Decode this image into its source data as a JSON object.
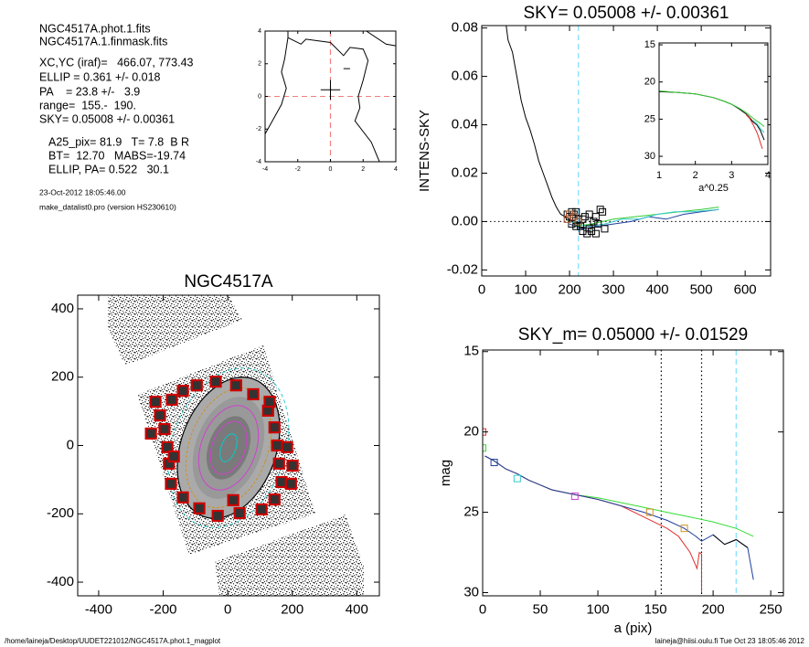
{
  "info": {
    "lines": [
      "NGC4517A.phot.1.fits",
      "NGC4517A.1.finmask.fits",
      "XC,YC (iraf)=   466.07, 773.43",
      "ELLIP = 0.361 +/- 0.018",
      "PA    = 23.8 +/-   3.9",
      "range=  155.-  190.",
      "SKY= 0.05008 +/- 0.00361",
      "A25_pix= 81.9   T= 7.8  B R",
      "BT=  12.70   MABS=-19.74",
      "ELLIP, PA= 0.522   30.1"
    ],
    "small": [
      "23-Oct-2012 18:05:46.00",
      "make_datalist0.pro (version HS230610)"
    ]
  },
  "footer": {
    "left": "/home/laineja/Desktop/UUDET221012/NGC4517A.phot.1_magplot",
    "right": "laineja@hiisi.oulu.fi  Tue Oct 23 18:05:46 2012"
  },
  "chart_data": [
    {
      "type": "contour",
      "xlim": [
        -4,
        4
      ],
      "ylim": [
        -4,
        4
      ],
      "xticks": [
        -4,
        -2,
        0,
        2,
        4
      ],
      "yticks": [
        -4,
        -2,
        0,
        2,
        4
      ],
      "vlines": [
        {
          "x": 0,
          "color": "#f08080",
          "dash": "dashed"
        }
      ],
      "hlines": [
        {
          "y": 0,
          "color": "#f08080",
          "dash": "dashed"
        }
      ],
      "series": [
        {
          "color": "#000000",
          "x": [
            -2.6,
            -2.6,
            -1.8,
            -1.5,
            0,
            0.8,
            1.2,
            2,
            2.3,
            2,
            1.7,
            1.8,
            1.5,
            2.5,
            3,
            null,
            -4,
            -3,
            -2.7,
            -3,
            -2.8,
            -2.6,
            null,
            2.2,
            3.4,
            4,
            null,
            -0.6,
            0.6,
            null,
            0,
            0,
            null,
            0.8,
            1.2
          ],
          "values": [
            4,
            3.6,
            3.2,
            3.5,
            3.3,
            2.5,
            3.0,
            2.9,
            2.2,
            1.0,
            0,
            -0.7,
            -1.5,
            -2.8,
            -4,
            null,
            -2.3,
            -0.5,
            0.5,
            1.5,
            2.3,
            3.6,
            null,
            4,
            3.2,
            3.1,
            null,
            0.4,
            0.4,
            null,
            -0.2,
            1.0,
            null,
            1.7,
            1.7
          ]
        }
      ]
    },
    {
      "type": "line",
      "title": "SKY= 0.05008 +/- 0.00361",
      "ylabel": "INTENS-SKY",
      "xlim": [
        0,
        658
      ],
      "ylim": [
        -0.0225,
        0.081
      ],
      "xticks": [
        0,
        100,
        200,
        300,
        400,
        500,
        600
      ],
      "yticks": [
        -0.02,
        {
          "value": 0,
          "label": "0.00"
        },
        0.02,
        0.04,
        0.06,
        0.08
      ],
      "vlines": [
        {
          "x": 220,
          "color": "#7fdfff",
          "dash": "dashed"
        }
      ],
      "hlines": [
        {
          "y": 0,
          "color": "#000000",
          "dash": "dotted"
        }
      ],
      "series": [
        {
          "color": "#000000",
          "x": [
            55,
            60,
            70,
            80,
            90,
            100,
            110,
            120,
            130,
            140,
            150,
            160,
            170,
            180,
            190,
            200,
            210,
            220,
            250
          ],
          "values": [
            0.082,
            0.075,
            0.07,
            0.06,
            0.05,
            0.043,
            0.038,
            0.032,
            0.025,
            0.02,
            0.015,
            0.01,
            0.006,
            0.003,
            0.002,
            0.001,
            -0.001,
            -0.002,
            -0.003
          ]
        },
        {
          "color": "#33cc33",
          "x": [
            210,
            250,
            300,
            350,
            400,
            450,
            500,
            540
          ],
          "values": [
            -0.002,
            -0.001,
            0.001,
            0.002,
            0.003,
            0.004,
            0.005,
            0.006
          ]
        },
        {
          "color": "#1f3f9f",
          "x": [
            200,
            230,
            260,
            300,
            340,
            380,
            420,
            460,
            500,
            540
          ],
          "values": [
            -0.001,
            -0.003,
            -0.002,
            -0.001,
            0.0,
            0.002,
            0.001,
            0.003,
            0.004,
            0.005
          ]
        },
        {
          "color": "#33cccc",
          "x": [
            200,
            240,
            280,
            320,
            360,
            400,
            440,
            480,
            540
          ],
          "values": [
            0.0,
            -0.002,
            -0.001,
            0.001,
            0.001,
            0.003,
            0.004,
            0.004,
            0.005
          ]
        },
        {
          "color": "#000000",
          "marker": "square",
          "x": [
            195,
            200,
            205,
            210,
            215,
            220,
            225,
            230,
            235,
            240,
            245,
            250,
            255,
            260,
            265,
            270,
            275,
            280,
            205,
            215,
            230,
            245,
            260
          ],
          "values": [
            0.003,
            0.002,
            -0.001,
            0.003,
            0.004,
            0.001,
            -0.002,
            -0.004,
            0.002,
            -0.005,
            -0.003,
            -0.004,
            0.0,
            0.002,
            -0.001,
            0.005,
            0.004,
            -0.003,
            0.004,
            -0.002,
            0.001,
            0.003,
            -0.005
          ]
        },
        {
          "color": "#a0522d",
          "marker": "square",
          "x": [
            195,
            200,
            210,
            220
          ],
          "values": [
            0.001,
            0.003,
            0.002,
            0.0
          ]
        }
      ]
    },
    {
      "type": "line",
      "xlabel": "a^0.25",
      "xlim": [
        1,
        4
      ],
      "ylim": [
        31.1,
        14.75
      ],
      "xticks": [
        1,
        2,
        3,
        4
      ],
      "yticks": [
        15,
        20,
        25,
        30
      ],
      "series": [
        {
          "color": "#000000",
          "x": [
            1,
            1.5,
            2,
            2.5,
            2.8,
            3,
            3.2,
            3.4,
            3.5,
            3.6,
            3.7,
            3.8,
            3.85,
            3.9
          ],
          "values": [
            21.3,
            21.4,
            21.6,
            22.1,
            22.6,
            23,
            23.6,
            24.3,
            24.8,
            25.4,
            25.8,
            26.6,
            27.2,
            27.8
          ]
        },
        {
          "color": "#e03030",
          "x": [
            3.4,
            3.5,
            3.6,
            3.7,
            3.75,
            3.8,
            3.85
          ],
          "values": [
            24.4,
            24.9,
            25.8,
            26.8,
            27.5,
            28.3,
            29.0
          ]
        },
        {
          "color": "#33cccc",
          "x": [
            3.6,
            3.7,
            3.8,
            3.9
          ],
          "values": [
            25.2,
            25.6,
            26.3,
            26.8
          ]
        },
        {
          "color": "#33cc33",
          "x": [
            1,
            1.5,
            2,
            2.5,
            2.8,
            3,
            3.2,
            3.4,
            3.6,
            3.8,
            3.9
          ],
          "values": [
            21.2,
            21.4,
            21.6,
            22.1,
            22.6,
            23.0,
            23.5,
            24.1,
            24.9,
            25.6,
            26.0
          ]
        }
      ]
    },
    {
      "type": "image",
      "title": "NGC4517A",
      "xlim": [
        -465,
        470
      ],
      "ylim": [
        -440,
        440
      ],
      "xticks": [
        -400,
        -200,
        0,
        200,
        400
      ],
      "yticks": [
        -400,
        -200,
        0,
        200,
        400
      ],
      "series": [
        {
          "color": "#cc0000",
          "marker": "box",
          "x": [
            -96,
            -37,
            26,
            79,
            125,
            145,
            153,
            159,
            167,
            145,
            105,
            37,
            -31,
            -88,
            -139,
            -176,
            -182,
            -187,
            -196,
            -210,
            -173,
            -139,
            201,
            184,
            130,
            -238,
            -167,
            196,
            -224,
            17
          ],
          "values": [
            176,
            187,
            176,
            150,
            102,
            53,
            0,
            -53,
            -107,
            -158,
            -187,
            -198,
            -206,
            -184,
            -152,
            -112,
            -53,
            -5,
            48,
            88,
            134,
            160,
            -59,
            -5,
            128,
            35,
            -32,
            -112,
            128,
            -160
          ]
        }
      ]
    },
    {
      "type": "line",
      "title": "SKY_m=  0.05000 +/- 0.01529",
      "xlabel": "a (pix)",
      "ylabel": "mag",
      "xlim": [
        0,
        261
      ],
      "ylim": [
        30.2,
        14.9
      ],
      "xticks": [
        0,
        50,
        100,
        150,
        200,
        250
      ],
      "yticks": [
        15,
        20,
        25,
        30
      ],
      "vlines": [
        {
          "x": 155,
          "color": "#000000",
          "dash": "dotted"
        },
        {
          "x": 190,
          "color": "#000000",
          "dash": "dotted"
        },
        {
          "x": 220,
          "color": "#7fdfff",
          "dash": "dashed"
        }
      ],
      "series": [
        {
          "color": "#33dd33",
          "x": [
            2,
            10,
            20,
            30,
            40,
            50,
            60,
            80,
            100,
            120,
            140,
            160,
            180,
            200,
            220,
            235
          ],
          "values": [
            21.5,
            21.8,
            22.3,
            22.6,
            23,
            23.3,
            23.6,
            23.9,
            24.1,
            24.4,
            24.7,
            25.0,
            25.3,
            25.6,
            26.0,
            26.5
          ]
        },
        {
          "color": "#e03030",
          "x": [
            2,
            10,
            20,
            30,
            40,
            50,
            60,
            80,
            100,
            120,
            140,
            160,
            170,
            180,
            186,
            188,
            190,
            190
          ],
          "values": [
            21.5,
            21.8,
            22.3,
            22.6,
            23,
            23.3,
            23.6,
            23.9,
            24.2,
            24.6,
            25.3,
            26,
            26.5,
            27.5,
            28.5,
            27.5,
            27.6,
            30
          ]
        },
        {
          "color": "#1f3f9f",
          "x": [
            2,
            10,
            20,
            30,
            40,
            50,
            60,
            80,
            100,
            120,
            140,
            160,
            175,
            185,
            190,
            200,
            210,
            220,
            230,
            235
          ],
          "values": [
            21.5,
            21.8,
            22.3,
            22.6,
            23,
            23.3,
            23.6,
            23.9,
            24.2,
            24.6,
            25,
            25.5,
            26,
            26.5,
            26.8,
            26.4,
            27,
            26.7,
            27.2,
            29.2
          ]
        },
        {
          "color": "#000000",
          "x": [
            200,
            210,
            220,
            230
          ],
          "values": [
            26.4,
            27,
            26.7,
            27.2
          ]
        },
        {
          "marker": "square",
          "colors": [
            "#e03030",
            "#33dd33",
            "#1f3f9f",
            "#33cccc",
            "#cc44cc",
            "#d09020",
            "#d09020"
          ],
          "x": [
            0,
            0,
            10,
            30,
            80,
            145,
            175
          ],
          "values": [
            20,
            21,
            21.9,
            22.9,
            24,
            25,
            26
          ]
        }
      ]
    }
  ]
}
